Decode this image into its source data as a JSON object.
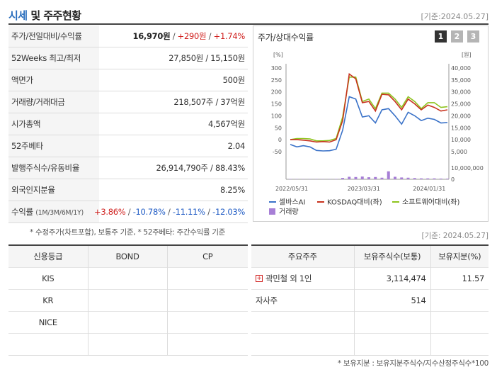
{
  "header": {
    "title_accent": "시세",
    "title_rest": " 및 주주현황",
    "base_date": "[기준:2024.05.27]"
  },
  "stats": {
    "price_label": "주가/전일대비/수익률",
    "price": "16,970원",
    "change": "+290원",
    "change_pct": "+1.74%",
    "w52_label": "52Weeks 최고/최저",
    "w52_value": "27,850원 / 15,150원",
    "par_label": "액면가",
    "par_value": "500원",
    "volume_label": "거래량/거래대금",
    "volume_value": "218,507주 / 37억원",
    "mcap_label": "시가총액",
    "mcap_value": "4,567억원",
    "beta_label": "52주베타",
    "beta_value": "2.04",
    "shares_label": "발행주식수/유동비율",
    "shares_value": "26,914,790주 / 88.43%",
    "foreign_label": "외국인지분율",
    "foreign_value": "8.25%",
    "return_label": "수익률",
    "return_periods": "(1M/3M/6M/1Y)",
    "r1m": "+3.86%",
    "r3m": "-10.78%",
    "r6m": "-11.11%",
    "r1y": "-12.03%",
    "sep": " / "
  },
  "note_left": "* 수정주가(차트포함), 보통주 기준, * 52주베타: 주간수익률 기준",
  "base_date_mid": "[기준: 2024.05.27]",
  "chart": {
    "title": "주가/상대수익률",
    "pages": [
      "1",
      "2",
      "3"
    ],
    "left_unit": "[%]",
    "right_unit": "[원]",
    "legend": {
      "s1": "셀바스AI",
      "s2": "KOSDAQ대비(좌)",
      "s3": "소프트웨어대비(좌)",
      "s4": "거래량"
    },
    "colors": {
      "s1": "#3a72c8",
      "s2": "#c8321e",
      "s3": "#8ec41e",
      "vol": "#a77fd6"
    }
  },
  "chart_data": {
    "type": "line",
    "x_ticks": [
      "2022/05/31",
      "2023/03/31",
      "2024/01/31"
    ],
    "y_left": {
      "unit": "%",
      "min": -50,
      "max": 300,
      "ticks": [
        -50,
        0,
        50,
        100,
        150,
        200,
        250,
        300
      ]
    },
    "y_right": {
      "unit": "원",
      "min": 5000,
      "max": 40000,
      "ticks": [
        5000,
        10000,
        15000,
        20000,
        25000,
        30000,
        35000,
        40000
      ]
    },
    "y_volume": {
      "max": 10000000,
      "ticks": [
        0,
        10000000
      ]
    },
    "series": [
      {
        "name": "셀바스AI",
        "axis": "left",
        "values": [
          -20,
          -30,
          -25,
          -30,
          -45,
          -47,
          -46,
          -40,
          40,
          180,
          170,
          95,
          100,
          70,
          125,
          130,
          100,
          65,
          115,
          100,
          80,
          90,
          85,
          70,
          72
        ]
      },
      {
        "name": "KOSDAQ대비(좌)",
        "axis": "left",
        "values": [
          0,
          0,
          -2,
          -5,
          -10,
          -8,
          -10,
          0,
          80,
          275,
          255,
          155,
          160,
          120,
          190,
          188,
          160,
          125,
          170,
          150,
          125,
          145,
          135,
          120,
          125
        ]
      },
      {
        "name": "소프트웨어대비(좌)",
        "axis": "left",
        "values": [
          0,
          5,
          5,
          3,
          -5,
          -5,
          -3,
          5,
          95,
          262,
          262,
          160,
          170,
          130,
          195,
          195,
          170,
          135,
          180,
          160,
          130,
          155,
          155,
          135,
          138
        ]
      }
    ],
    "volume": [
      0.3,
      0.2,
      0.2,
      0.2,
      0.2,
      0.2,
      0.2,
      0.3,
      1.2,
      2.2,
      2.0,
      2.4,
      1.8,
      2.0,
      1.4,
      7.0,
      2.2,
      1.6,
      1.4,
      1.1,
      0.8,
      0.8,
      0.8,
      0.6,
      0.5
    ]
  },
  "credit_table": {
    "headers": [
      "신용등급",
      "BOND",
      "CP"
    ],
    "rows": [
      [
        "KIS",
        "",
        ""
      ],
      [
        "KR",
        "",
        ""
      ],
      [
        "NICE",
        "",
        ""
      ],
      [
        "",
        "",
        ""
      ]
    ]
  },
  "holder_table": {
    "headers": [
      "주요주주",
      "보유주식수(보통)",
      "보유지분(%)"
    ],
    "rows": [
      {
        "name": "곽민철 외 1인",
        "shares": "3,114,474",
        "pct": "11.57",
        "expand": true
      },
      {
        "name": "자사주",
        "shares": "514",
        "pct": "",
        "expand": false
      },
      {
        "name": "",
        "shares": "",
        "pct": "",
        "expand": false
      },
      {
        "name": "",
        "shares": "",
        "pct": "",
        "expand": false
      }
    ]
  },
  "note_right": "* 보유지분 : 보유지분주식수/지수산정주식수*100"
}
